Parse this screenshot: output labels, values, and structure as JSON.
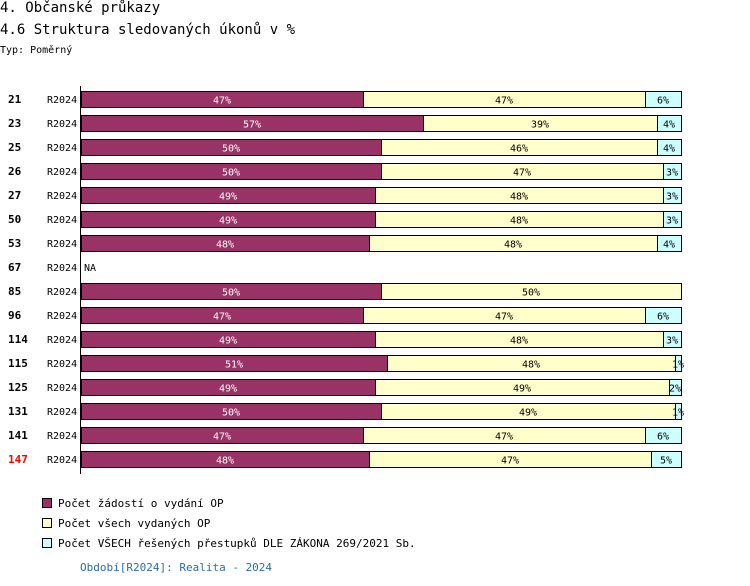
{
  "header": {
    "title": "4. Občanské průkazy",
    "subtitle": "4.6 Struktura sledovaných úkonů v %",
    "type_label": "Typ: Poměrný"
  },
  "colors": {
    "series1": "#993366",
    "series2": "#ffffcc",
    "series3": "#ccffff",
    "highlight": "#ff0000",
    "period_text": "#2a6ea6"
  },
  "chart_data": {
    "type": "bar",
    "orientation": "horizontal",
    "stacked": true,
    "xlim": [
      0,
      100
    ],
    "categories": [
      "21",
      "23",
      "25",
      "26",
      "27",
      "50",
      "53",
      "67",
      "85",
      "96",
      "114",
      "115",
      "125",
      "131",
      "141",
      "147"
    ],
    "period_labels": [
      "R2024",
      "R2024",
      "R2024",
      "R2024",
      "R2024",
      "R2024",
      "R2024",
      "R2024",
      "R2024",
      "R2024",
      "R2024",
      "R2024",
      "R2024",
      "R2024",
      "R2024",
      "R2024"
    ],
    "highlighted_category": "147",
    "na_label": "NA",
    "series": [
      {
        "name": "Počet žádostí o vydání OP",
        "values": [
          47,
          57,
          50,
          50,
          49,
          49,
          48,
          null,
          50,
          47,
          49,
          51,
          49,
          50,
          47,
          48
        ]
      },
      {
        "name": "Počet všech vydaných OP",
        "values": [
          47,
          39,
          46,
          47,
          48,
          48,
          48,
          null,
          50,
          47,
          48,
          48,
          49,
          49,
          47,
          47
        ]
      },
      {
        "name": "Počet VŠECH řešených přestupků DLE ZÁKONA  269/2021 Sb.",
        "values": [
          6,
          4,
          4,
          3,
          3,
          3,
          4,
          null,
          0,
          6,
          3,
          1,
          2,
          1,
          6,
          5
        ]
      }
    ]
  },
  "legend": {
    "items": [
      "Počet žádostí o vydání OP",
      "Počet všech vydaných OP",
      "Počet VŠECH řešených přestupků DLE ZÁKONA  269/2021 Sb."
    ]
  },
  "footer": {
    "period": "Období[R2024]: Realita - 2024"
  }
}
